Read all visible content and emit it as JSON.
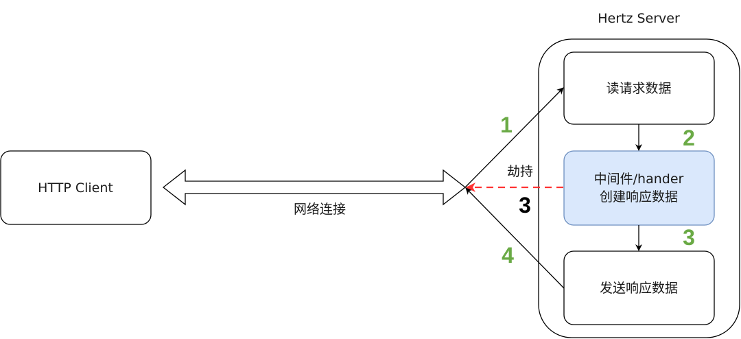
{
  "colors": {
    "step_green": "#6aaa45",
    "hijack_red": "#ff3333",
    "highlight_fill": "#dae8fc",
    "highlight_stroke": "#6c8ebf"
  },
  "client": {
    "label": "HTTP Client"
  },
  "connection": {
    "label": "网络连接"
  },
  "server": {
    "title": "Hertz Server",
    "read_box": "读请求数据",
    "handler_box_line1": "中间件/hander",
    "handler_box_line2": "创建响应数据",
    "send_box": "发送响应数据"
  },
  "edges": {
    "hijack_label": "劫持",
    "step1": "1",
    "step2": "2",
    "step3": "3",
    "step3_hijack": "3",
    "step4": "4"
  }
}
